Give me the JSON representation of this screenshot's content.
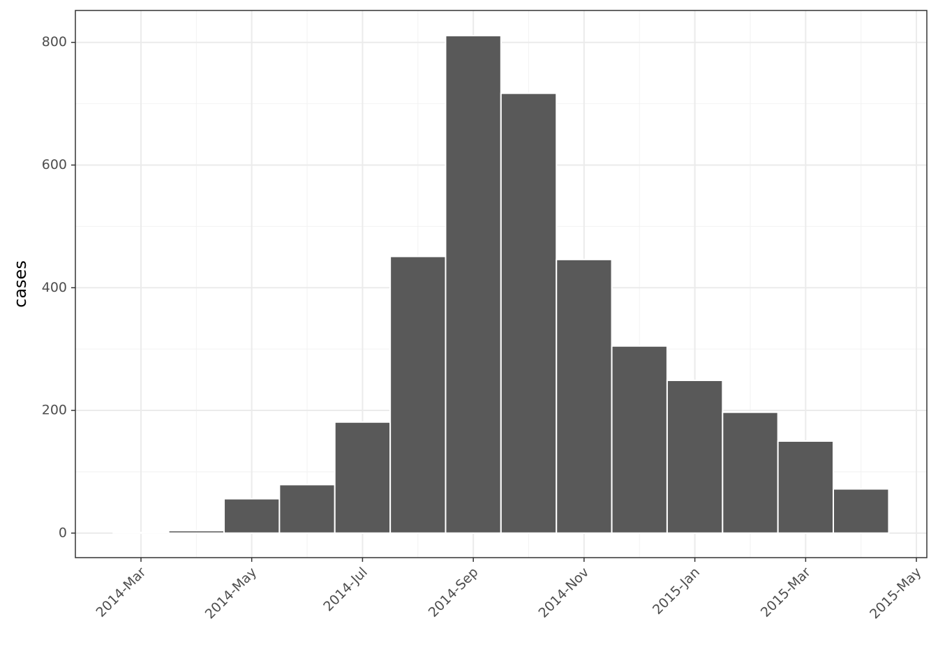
{
  "chart_data": {
    "type": "histogram",
    "y_label": "cases",
    "bins": [
      2014.125,
      2014.2083,
      2014.2917,
      2014.375,
      2014.4583,
      2014.5417,
      2014.625,
      2014.7083,
      2014.7917,
      2014.875,
      2014.9583,
      2015.0417,
      2015.125,
      2015.2083,
      2015.2917
    ],
    "values": [
      1,
      4,
      56,
      79,
      181,
      451,
      811,
      717,
      446,
      305,
      249,
      197,
      150,
      72
    ],
    "color": "#595959",
    "xlim": [
      2014.068,
      2015.349
    ],
    "xticks": [
      {
        "value": 2014.1667,
        "label": "2014-Mar"
      },
      {
        "value": 2014.3333,
        "label": "2014-May"
      },
      {
        "value": 2014.5,
        "label": "2014-Jul"
      },
      {
        "value": 2014.6667,
        "label": "2014-Sep"
      },
      {
        "value": 2014.8333,
        "label": "2014-Nov"
      },
      {
        "value": 2015.0,
        "label": "2015-Jan"
      },
      {
        "value": 2015.1667,
        "label": "2015-Mar"
      },
      {
        "value": 2015.3333,
        "label": "2015-May"
      }
    ],
    "ylim": [
      -40,
      852
    ],
    "yticks": [
      0,
      200,
      400,
      600,
      800
    ],
    "grid": true
  }
}
